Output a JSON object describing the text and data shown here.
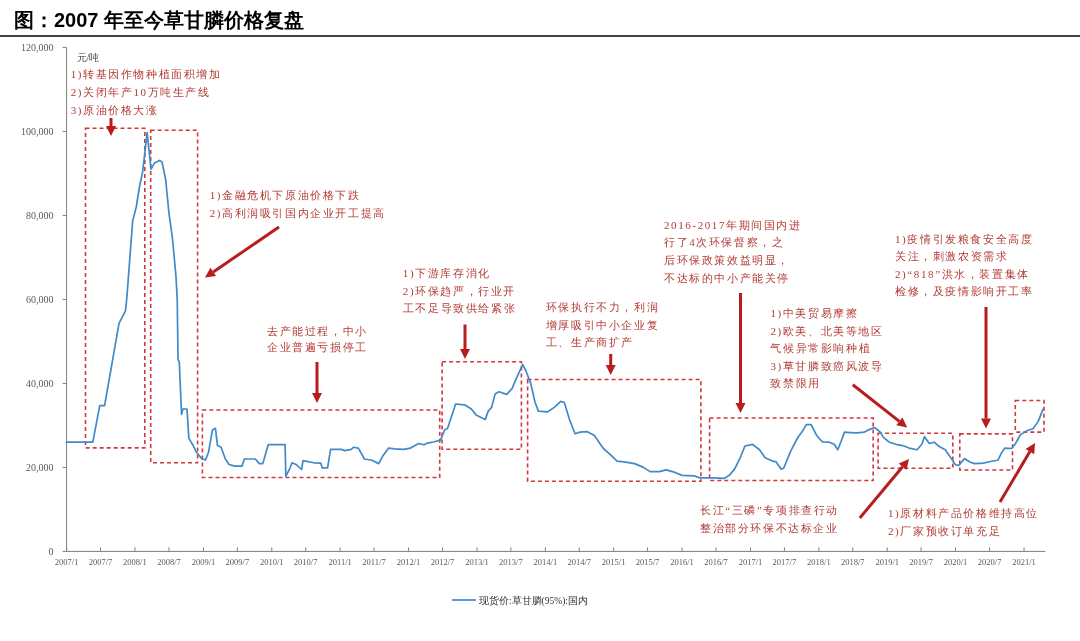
{
  "chart_data": {
    "type": "line",
    "title": "图：2007 年至今草甘膦价格复盘",
    "ylabel": "元/吨",
    "x": [
      "2007-01-01",
      "2007-05-21",
      "2007-06-27",
      "2007-07-23",
      "2007-10-08",
      "2007-11-11",
      "2007-11-18",
      "2007-12-20",
      "2008-01-08",
      "2008-01-26",
      "2008-02-11",
      "2008-03-06",
      "2008-03-27",
      "2008-04-15",
      "2008-05-11",
      "2008-05-25",
      "2008-06-13",
      "2008-07-01",
      "2008-07-19",
      "2008-08-07",
      "2008-08-14",
      "2008-08-18",
      "2008-08-25",
      "2008-09-06",
      "2008-09-13",
      "2008-10-05",
      "2008-10-15",
      "2008-11-07",
      "2008-11-25",
      "2008-12-24",
      "2009-01-12",
      "2009-01-28",
      "2009-02-18",
      "2009-03-06",
      "2009-03-17",
      "2009-04-05",
      "2009-04-28",
      "2009-05-18",
      "2009-06-17",
      "2009-07-26",
      "2009-08-07",
      "2009-10-05",
      "2009-10-26",
      "2009-11-14",
      "2009-12-13",
      "2010-03-13",
      "2010-03-17",
      "2010-04-05",
      "2010-04-19",
      "2010-05-11",
      "2010-06-09",
      "2010-06-17",
      "2010-08-14",
      "2010-09-20",
      "2010-09-27",
      "2010-10-26",
      "2010-11-11",
      "2011-01-08",
      "2011-01-26",
      "2011-03-02",
      "2011-03-13",
      "2011-04-08",
      "2011-05-11",
      "2011-06-20",
      "2011-07-26",
      "2011-08-18",
      "2011-09-17",
      "2011-10-19",
      "2011-12-06",
      "2012-01-12",
      "2012-02-25",
      "2012-03-24",
      "2012-04-12",
      "2012-05-18",
      "2012-06-20",
      "2012-07-12",
      "2012-07-28",
      "2012-09-09",
      "2012-10-26",
      "2012-12-02",
      "2012-12-27",
      "2013-02-14",
      "2013-03-02",
      "2013-03-20",
      "2013-04-08",
      "2013-04-28",
      "2013-06-09",
      "2013-07-08",
      "2013-07-26",
      "2013-08-14",
      "2013-09-02",
      "2013-09-20",
      "2013-10-15",
      "2013-11-07",
      "2013-11-25",
      "2014-01-12",
      "2014-02-18",
      "2014-03-24",
      "2014-04-12",
      "2014-05-11",
      "2014-06-09",
      "2014-07-05",
      "2014-08-14",
      "2014-09-20",
      "2014-11-07",
      "2014-12-13",
      "2015-01-19",
      "2015-02-25",
      "2015-04-23",
      "2015-06-09",
      "2015-07-15",
      "2015-09-02",
      "2015-10-08",
      "2015-11-25",
      "2016-01-01",
      "2016-03-06",
      "2016-04-05",
      "2016-06-17",
      "2016-08-14",
      "2016-09-09",
      "2016-10-08",
      "2016-11-07",
      "2016-12-02",
      "2017-01-12",
      "2017-02-18",
      "2017-03-20",
      "2017-04-28",
      "2017-05-18",
      "2017-06-13",
      "2017-06-27",
      "2017-08-03",
      "2017-09-09",
      "2017-10-08",
      "2017-10-26",
      "2017-11-21",
      "2017-12-20",
      "2018-01-19",
      "2018-02-25",
      "2018-03-24",
      "2018-04-12",
      "2018-04-28",
      "2018-05-18",
      "2018-06-17",
      "2018-07-23",
      "2018-09-02",
      "2018-09-27",
      "2018-10-26",
      "2018-11-25",
      "2018-12-13",
      "2019-01-12",
      "2019-02-18",
      "2019-03-24",
      "2019-04-28",
      "2019-06-09",
      "2019-07-05",
      "2019-07-19",
      "2019-08-14",
      "2019-09-09",
      "2019-10-08",
      "2019-11-07",
      "2019-12-02",
      "2020-01-01",
      "2020-01-19",
      "2020-02-18",
      "2020-03-17",
      "2020-04-12",
      "2020-05-28",
      "2020-07-05",
      "2020-08-14",
      "2020-09-02",
      "2020-09-20",
      "2020-10-26",
      "2020-11-14",
      "2020-12-13",
      "2021-01-19",
      "2021-02-18",
      "2021-03-17",
      "2021-04-12"
    ],
    "series": [
      {
        "name": "现货价:草甘膦(95%):国内",
        "color": "#4189c7",
        "values": [
          26000,
          26000,
          34700,
          34700,
          54300,
          57200,
          60000,
          78700,
          82000,
          87000,
          90300,
          99700,
          91000,
          92500,
          93100,
          92700,
          88600,
          80400,
          74700,
          65600,
          59900,
          45700,
          45000,
          32600,
          33900,
          33900,
          26900,
          25200,
          23600,
          22000,
          21800,
          23600,
          28900,
          29300,
          25200,
          24800,
          22000,
          20700,
          20300,
          20300,
          22000,
          22000,
          20900,
          20900,
          25400,
          25400,
          17900,
          19500,
          21100,
          20700,
          19500,
          21600,
          21100,
          21000,
          19900,
          19900,
          24300,
          24300,
          24000,
          24300,
          24800,
          24600,
          22000,
          21700,
          20900,
          22800,
          24600,
          24400,
          24300,
          24600,
          25700,
          25400,
          25800,
          26100,
          26500,
          28900,
          29300,
          35100,
          34900,
          33900,
          32500,
          31400,
          33400,
          34300,
          37500,
          38000,
          37400,
          38800,
          40800,
          42600,
          44500,
          42900,
          40000,
          35500,
          33400,
          33200,
          34300,
          35700,
          35500,
          31300,
          28000,
          28400,
          28500,
          27600,
          24500,
          23100,
          21500,
          21300,
          20900,
          20000,
          19000,
          19000,
          19400,
          18800,
          18100,
          18000,
          17500,
          17500,
          17400,
          18100,
          19600,
          22300,
          25100,
          25500,
          24200,
          22300,
          21500,
          21300,
          19600,
          19800,
          23800,
          27000,
          28800,
          30200,
          30200,
          27600,
          26100,
          26000,
          25500,
          24200,
          26000,
          28400,
          28300,
          28200,
          28400,
          29000,
          29500,
          28400,
          27100,
          26000,
          25500,
          25200,
          24600,
          24200,
          25500,
          27300,
          25700,
          26000,
          24900,
          24200,
          22600,
          20600,
          20500,
          22100,
          21300,
          20900,
          21000,
          21400,
          21700,
          23400,
          24600,
          24500,
          25500,
          27800,
          28800,
          29200,
          30900,
          33800
        ]
      }
    ],
    "xlim": [
      "2007-01-01",
      "2021-04-25"
    ],
    "xticks": [
      {
        "value": "2007-01",
        "label": "2007/1"
      },
      {
        "value": "2007-07",
        "label": "2007/7"
      },
      {
        "value": "2008-01",
        "label": "2008/1"
      },
      {
        "value": "2008-07",
        "label": "2008/7"
      },
      {
        "value": "2009-01",
        "label": "2009/1"
      },
      {
        "value": "2009-07",
        "label": "2009/7"
      },
      {
        "value": "2010-01",
        "label": "2010/1"
      },
      {
        "value": "2010-07",
        "label": "2010/7"
      },
      {
        "value": "2011-01",
        "label": "2011/1"
      },
      {
        "value": "2011-07",
        "label": "2011/7"
      },
      {
        "value": "2012-01",
        "label": "2012/1"
      },
      {
        "value": "2012-07",
        "label": "2012/7"
      },
      {
        "value": "2013-01",
        "label": "2013/1"
      },
      {
        "value": "2013-07",
        "label": "2013/7"
      },
      {
        "value": "2014-01",
        "label": "2014/1"
      },
      {
        "value": "2014-07",
        "label": "2014/7"
      },
      {
        "value": "2015-01",
        "label": "2015/1"
      },
      {
        "value": "2015-07",
        "label": "2015/7"
      },
      {
        "value": "2016-01",
        "label": "2016/1"
      },
      {
        "value": "2016-07",
        "label": "2016/7"
      },
      {
        "value": "2017-01",
        "label": "2017/1"
      },
      {
        "value": "2017-07",
        "label": "2017/7"
      },
      {
        "value": "2018-01",
        "label": "2018/1"
      },
      {
        "value": "2018-07",
        "label": "2018/7"
      },
      {
        "value": "2019-01",
        "label": "2019/1"
      },
      {
        "value": "2019-07",
        "label": "2019/7"
      },
      {
        "value": "2020-01",
        "label": "2020/1"
      },
      {
        "value": "2020-07",
        "label": "2020/7"
      },
      {
        "value": "2021-01",
        "label": "2021/1"
      }
    ],
    "ylim": [
      0,
      120000
    ],
    "yticks": [
      0,
      {
        "value": 20000,
        "label": "20,000"
      },
      {
        "value": 40000,
        "label": "40,000"
      },
      {
        "value": 60000,
        "label": "60,000"
      },
      {
        "value": 80000,
        "label": "80,000"
      },
      {
        "value": 100000,
        "label": "100,000"
      },
      {
        "value": 120000,
        "label": "120,000"
      }
    ],
    "legend": "bottom",
    "annotations": [
      "1)转基因作物种植面积增加\n2)关闭年产10万吨生产线\n3)原油价格大涨",
      "1)金融危机下原油价格下跌\n2)高利润吸引国内企业开工提高",
      "去产能过程，中小企业普遍亏损停工",
      "1)下游库存消化\n2)环保趋严，行业开工不足导致供给紧张",
      "环保执行不力，利润增厚吸引中小企业复工、生产商扩产",
      "2016-2017年期间国内进行了4次环保督察，之后环保政策效益明显，不达标的中小产能关停",
      "1)中美贸易摩擦\n2)欧美、北美等地区气候异常影响种植\n3)草甘膦致癌风波导致禁限用",
      "长江“三磷”专项排查行动整治部分环保不达标企业",
      "1)疫情引发粮食安全高度关注，刺激农资需求\n2)“818”洪水，装置集体检修，及疫情影响开工率",
      "1)原材料产品价格维持高位\n2)厂家预收订单充足"
    ]
  }
}
